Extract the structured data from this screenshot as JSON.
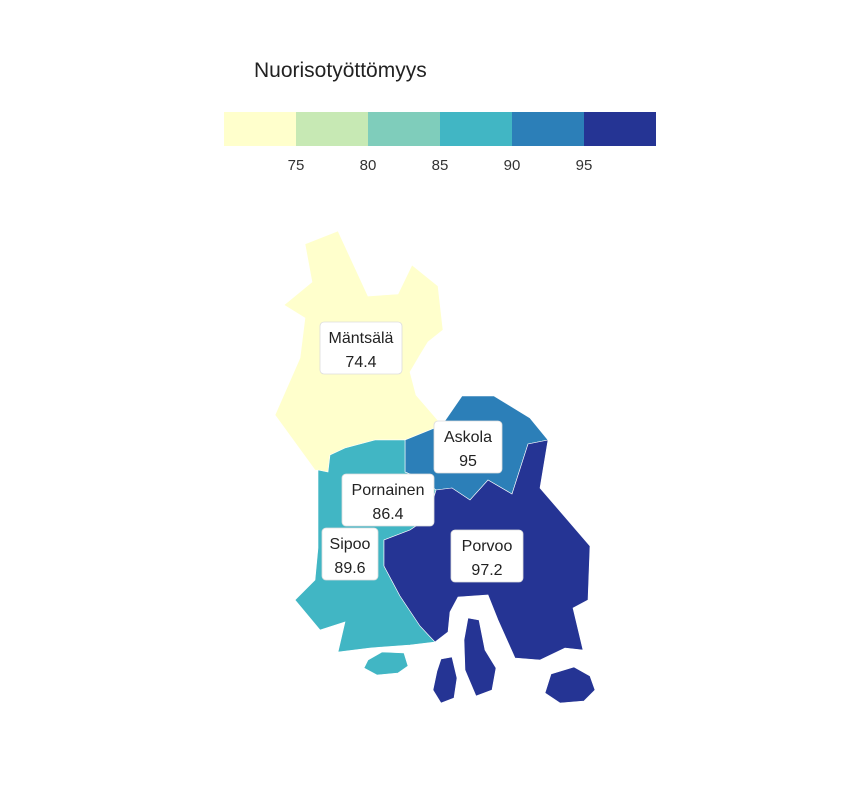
{
  "legend": {
    "title": "Nuorisotyöttömyys",
    "colors": [
      "#ffffcc",
      "#c7e9b4",
      "#7fcdbb",
      "#41b6c4",
      "#2c7fb8",
      "#253494"
    ],
    "breaks": [
      "75",
      "80",
      "85",
      "90",
      "95"
    ]
  },
  "regions": [
    {
      "name": "Mäntsälä",
      "value": "74.4",
      "color": "#ffffcc"
    },
    {
      "name": "Askola",
      "value": "95",
      "color": "#2c7fb8"
    },
    {
      "name": "Pornainen",
      "value": "86.4",
      "color": "#41b6c4"
    },
    {
      "name": "Sipoo",
      "value": "89.6",
      "color": "#41b6c4"
    },
    {
      "name": "Porvoo",
      "value": "97.2",
      "color": "#253494"
    }
  ]
}
